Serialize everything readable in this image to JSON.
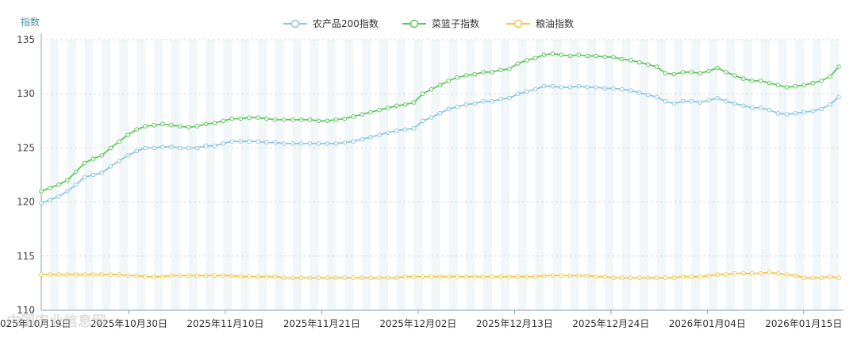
{
  "chart_data": {
    "type": "line",
    "ylabel": "指数",
    "ylim": [
      110,
      135
    ],
    "yticks": [
      110,
      115,
      120,
      125,
      130,
      135
    ],
    "grid": true,
    "legend": "top-center",
    "x_start": "2025-10-20",
    "x_end": "2026-01-19",
    "x_tick_labels": [
      "2025年10月19日",
      "2025年10月30日",
      "2025年11月10日",
      "2025年11月21日",
      "2025年12月02日",
      "2025年12月13日",
      "2025年12月24日",
      "2026年01月04日",
      "2026年01月15日"
    ],
    "series": [
      {
        "name": "农产品200指数",
        "color": "#8cc6e0",
        "values": [
          119.9,
          120.2,
          120.5,
          121.0,
          121.6,
          122.3,
          122.5,
          122.7,
          123.3,
          123.8,
          124.3,
          124.7,
          125.0,
          125.0,
          125.1,
          125.1,
          125.0,
          125.0,
          125.0,
          125.2,
          125.2,
          125.4,
          125.6,
          125.6,
          125.6,
          125.6,
          125.5,
          125.5,
          125.4,
          125.4,
          125.4,
          125.4,
          125.4,
          125.4,
          125.4,
          125.5,
          125.6,
          125.8,
          126.0,
          126.2,
          126.4,
          126.6,
          126.7,
          126.8,
          127.5,
          127.8,
          128.2,
          128.6,
          128.8,
          129.0,
          129.1,
          129.3,
          129.3,
          129.5,
          129.6,
          130.0,
          130.2,
          130.4,
          130.7,
          130.7,
          130.6,
          130.6,
          130.7,
          130.6,
          130.6,
          130.5,
          130.5,
          130.4,
          130.3,
          130.1,
          129.9,
          129.7,
          129.3,
          129.1,
          129.3,
          129.3,
          129.2,
          129.4,
          129.6,
          129.3,
          129.1,
          128.9,
          128.7,
          128.7,
          128.5,
          128.2,
          128.1,
          128.2,
          128.3,
          128.4,
          128.6,
          129.0,
          129.7
        ]
      },
      {
        "name": "菜篮子指数",
        "color": "#5fc95a",
        "values": [
          121.0,
          121.3,
          121.6,
          122.0,
          122.8,
          123.6,
          124.0,
          124.3,
          125.0,
          125.6,
          126.2,
          126.7,
          127.0,
          127.1,
          127.2,
          127.1,
          127.0,
          126.9,
          127.0,
          127.2,
          127.3,
          127.5,
          127.7,
          127.7,
          127.8,
          127.8,
          127.7,
          127.6,
          127.6,
          127.6,
          127.6,
          127.6,
          127.5,
          127.5,
          127.6,
          127.7,
          127.9,
          128.1,
          128.3,
          128.5,
          128.7,
          128.9,
          129.0,
          129.2,
          130.0,
          130.4,
          130.8,
          131.2,
          131.5,
          131.7,
          131.8,
          132.0,
          132.0,
          132.2,
          132.3,
          132.8,
          133.1,
          133.3,
          133.6,
          133.7,
          133.6,
          133.5,
          133.6,
          133.5,
          133.5,
          133.4,
          133.4,
          133.2,
          133.1,
          132.9,
          132.7,
          132.5,
          131.9,
          131.8,
          132.0,
          132.0,
          131.9,
          132.1,
          132.4,
          132.0,
          131.7,
          131.4,
          131.2,
          131.2,
          131.0,
          130.8,
          130.6,
          130.7,
          130.8,
          131.0,
          131.2,
          131.6,
          132.5
        ]
      },
      {
        "name": "粮油指数",
        "color": "#f5c842",
        "values": [
          113.3,
          113.3,
          113.3,
          113.3,
          113.3,
          113.3,
          113.3,
          113.3,
          113.3,
          113.3,
          113.2,
          113.2,
          113.1,
          113.1,
          113.1,
          113.2,
          113.2,
          113.2,
          113.2,
          113.2,
          113.2,
          113.2,
          113.2,
          113.1,
          113.1,
          113.1,
          113.1,
          113.1,
          113.0,
          113.0,
          113.0,
          113.0,
          113.0,
          113.0,
          113.0,
          113.0,
          113.0,
          113.0,
          113.0,
          113.0,
          113.0,
          113.0,
          113.1,
          113.1,
          113.1,
          113.1,
          113.1,
          113.1,
          113.1,
          113.1,
          113.1,
          113.1,
          113.1,
          113.1,
          113.1,
          113.1,
          113.1,
          113.1,
          113.2,
          113.2,
          113.2,
          113.2,
          113.2,
          113.2,
          113.1,
          113.1,
          113.0,
          113.0,
          113.0,
          113.0,
          113.0,
          113.0,
          113.0,
          113.0,
          113.1,
          113.1,
          113.1,
          113.2,
          113.3,
          113.3,
          113.4,
          113.4,
          113.4,
          113.4,
          113.5,
          113.4,
          113.3,
          113.2,
          113.0,
          113.0,
          113.0,
          113.1,
          113.0
        ]
      }
    ]
  },
  "watermark": "中国农业信息网"
}
